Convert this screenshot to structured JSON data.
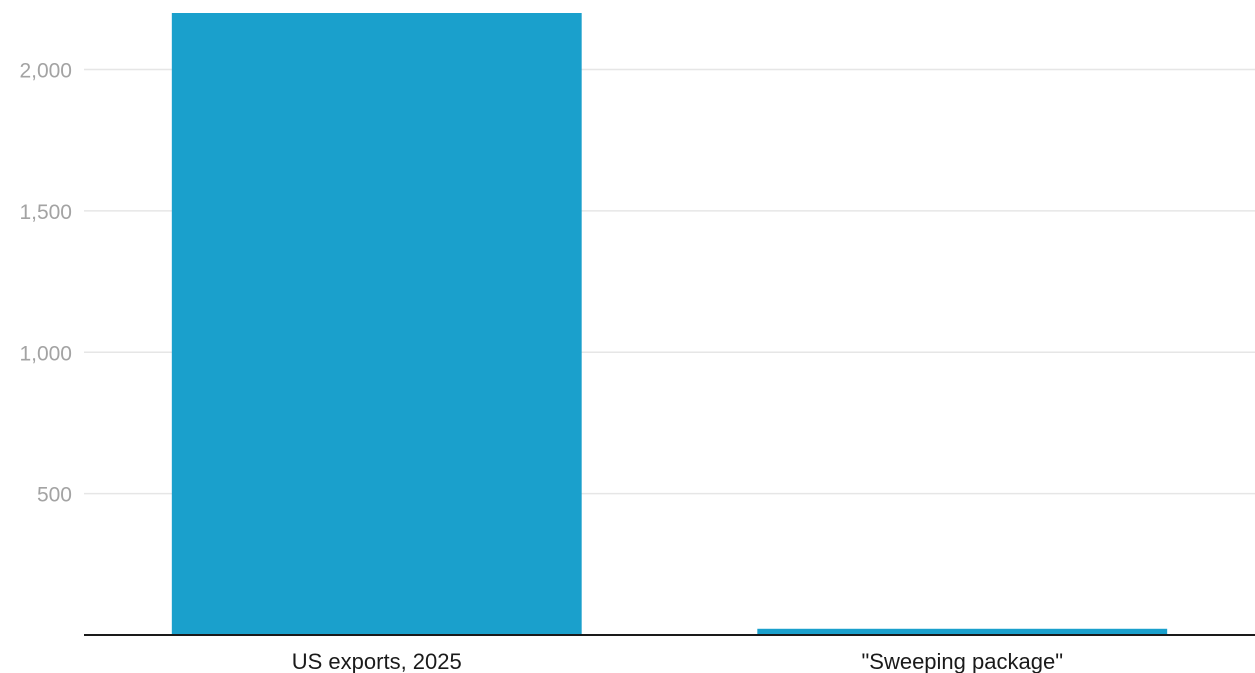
{
  "chart_data": {
    "type": "bar",
    "categories": [
      "US exports, 2025",
      "\"Sweeping package\""
    ],
    "values": [
      2200,
      22
    ],
    "title": "",
    "xlabel": "",
    "ylabel": "",
    "ylim": [
      0,
      2200
    ],
    "yticks": [
      500,
      1000,
      1500,
      2000
    ],
    "ytick_labels": [
      "500",
      "1,000",
      "1,500",
      "2,000"
    ],
    "grid": true,
    "legend": "none",
    "colors": {
      "bar": "#1aa0cc",
      "grid": "#e6e6e6",
      "axis": "#1a1a1a",
      "tick_text": "#a3a3a3",
      "category_text": "#1a1a1a"
    }
  }
}
